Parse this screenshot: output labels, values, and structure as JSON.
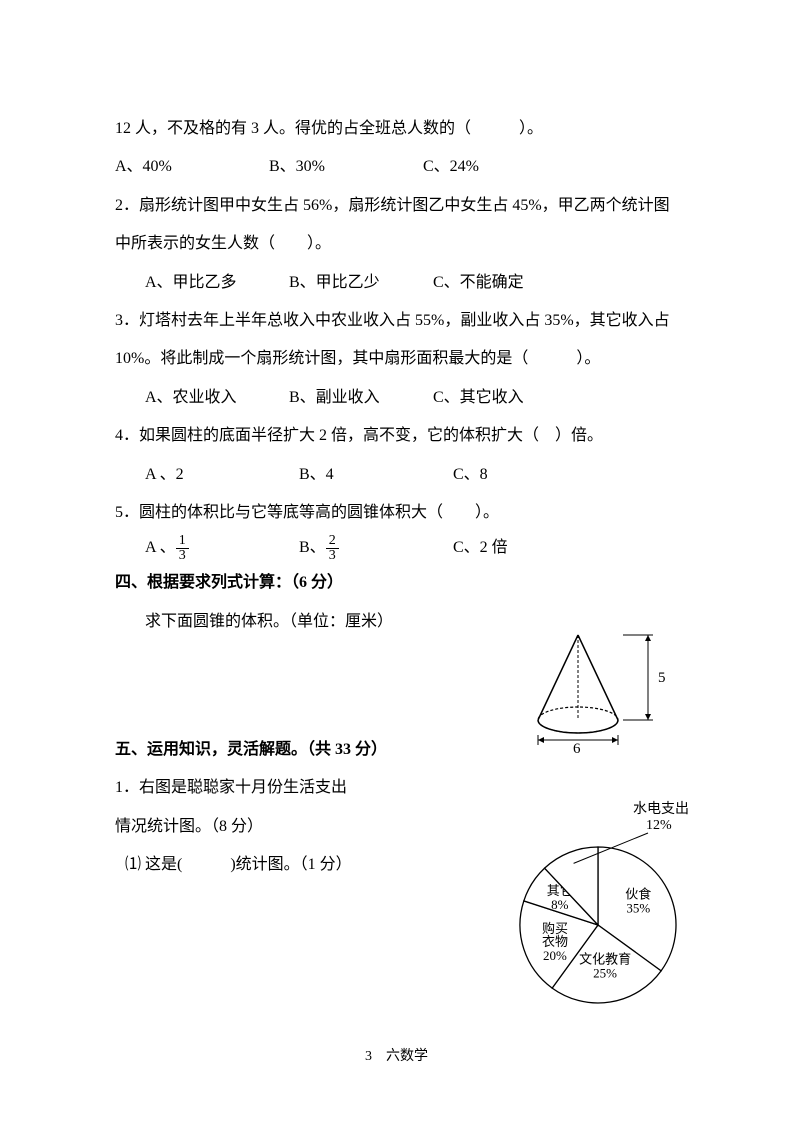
{
  "q1": {
    "continuation": "12 人，不及格的有 3 人。得优的占全班总人数的（　　　）。",
    "optA": "A、40%",
    "optB": "B、30%",
    "optC": "C、24%"
  },
  "q2": {
    "text": "2．扇形统计图甲中女生占 56%，扇形统计图乙中女生占 45%，甲乙两个统计图中所表示的女生人数（　　）。",
    "optA": "A、甲比乙多",
    "optB": "B、甲比乙少",
    "optC": "C、不能确定"
  },
  "q3": {
    "text": "3．灯塔村去年上半年总收入中农业收入占 55%，副业收入占 35%，其它收入占 10%。将此制成一个扇形统计图，其中扇形面积最大的是（　　　）。",
    "optA": "A、农业收入",
    "optB": "B、副业收入",
    "optC": "C、其它收入"
  },
  "q4": {
    "text": "4．如果圆柱的底面半径扩大 2 倍，高不变，它的体积扩大（　）倍。",
    "optA": "A 、2",
    "optB": "B、4",
    "optC": "C、8"
  },
  "q5": {
    "text": "5．圆柱的体积比与它等底等高的圆锥体积大（　　）。",
    "optA_prefix": "A 、",
    "optA_num": "1",
    "optA_den": "3",
    "optB_prefix": "B、",
    "optB_num": "2",
    "optB_den": "3",
    "optC": "C、2 倍"
  },
  "section4": {
    "header": "四、根据要求列式计算：（6 分）",
    "prompt": "求下面圆锥的体积。（单位：厘米）"
  },
  "cone": {
    "base_diameter": "6",
    "height": "5",
    "stroke": "#000000",
    "stroke_width": 1.2
  },
  "section5": {
    "header": "五、运用知识，灵活解题。（共 33 分）",
    "q1_line1": "1．右图是聪聪家十月份生活支出",
    "q1_line2": "情况统计图。（8 分）",
    "q1_sub1": "⑴ 这是(　　　)统计图。（1 分）"
  },
  "pie": {
    "title": "水电支出",
    "title_pct": "12%",
    "slices": [
      {
        "label": "伙食",
        "pct": "35%",
        "start": 0,
        "end": 126
      },
      {
        "label": "文化教育",
        "pct": "25%",
        "start": 126,
        "end": 216
      },
      {
        "label": "购买\n衣物",
        "pct": "20%",
        "start": 216,
        "end": 288
      },
      {
        "label": "其它",
        "pct": "8%",
        "start": 288,
        "end": 316.8
      },
      {
        "label": "水电支出",
        "pct": "12%",
        "start": 316.8,
        "end": 360
      }
    ],
    "stroke": "#000000",
    "fill": "#ffffff",
    "fontsize": 13
  },
  "footer": "3　六数学"
}
